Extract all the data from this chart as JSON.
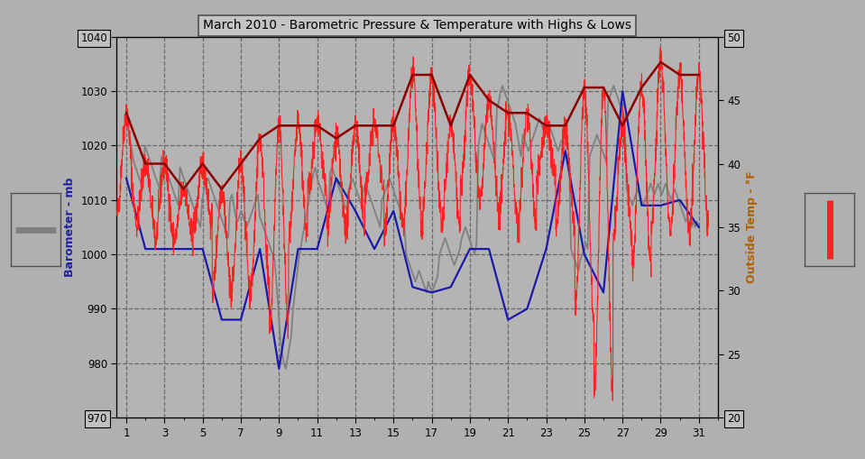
{
  "title": "March 2010 - Barometric Pressure & Temperature with Highs & Lows",
  "bg_color": "#b0b0b0",
  "plot_bg_color": "#b4b4b4",
  "left_ylabel": "Barometer - mb",
  "right_ylabel": "Outside Temp - °F",
  "ylim_left": [
    970.0,
    1040.0
  ],
  "ylim_right": [
    20.0,
    50.0
  ],
  "yticks_left": [
    970.0,
    980.0,
    990.0,
    1000.0,
    1010.0,
    1020.0,
    1030.0,
    1040.0
  ],
  "yticks_right": [
    20.0,
    25.0,
    30.0,
    35.0,
    40.0,
    45.0,
    50.0
  ],
  "xticks": [
    1,
    3,
    5,
    7,
    9,
    11,
    13,
    15,
    17,
    19,
    21,
    23,
    25,
    27,
    29,
    31
  ],
  "xlim": [
    0.5,
    32.0
  ],
  "pressure_color": "#808080",
  "pressure_low_color": "#1a1aaa",
  "temp_continuous_color": "#ff2020",
  "temp_high_color": "#8b0000",
  "seed": 42,
  "pressure_hires": [
    1025,
    1023,
    1021,
    1019,
    1017,
    1016,
    1015,
    1014,
    1013,
    1012,
    1020,
    1019,
    1018,
    1017,
    1016,
    1015,
    1014,
    1013,
    1012,
    1018,
    1017,
    1016,
    1015,
    1014,
    1013,
    1012,
    1011,
    1010,
    1009,
    1016,
    1015,
    1014,
    1013,
    1012,
    1011,
    1010,
    1009,
    1008,
    1007,
    1006,
    1005,
    1010,
    1012,
    1013,
    1014,
    1013,
    1012,
    1011,
    1010,
    1009,
    1008,
    1007,
    1006,
    1005,
    1004,
    1003,
    1010,
    1011,
    1009,
    1007,
    1006,
    1007,
    1008,
    1007,
    1006,
    1005,
    1006,
    1007,
    1008,
    1009,
    1010,
    1011,
    1007,
    1006,
    1005,
    1004,
    1003,
    1002,
    1001,
    1000,
    999,
    995,
    990,
    985,
    982,
    980,
    979,
    981,
    983,
    985,
    990,
    993,
    996,
    999,
    1001,
    1003,
    1005,
    1007,
    1009,
    1011,
    1013,
    1015,
    1016,
    1014,
    1013,
    1012,
    1011,
    1010,
    1009,
    1008,
    1015,
    1016,
    1015,
    1014,
    1013,
    1012,
    1011,
    1010,
    1009,
    1008,
    1012,
    1013,
    1014,
    1013,
    1012,
    1011,
    1010,
    1009,
    1012,
    1013,
    1012,
    1011,
    1010,
    1009,
    1008,
    1007,
    1006,
    1005,
    1010,
    1011,
    1012,
    1013,
    1014,
    1013,
    1012,
    1011,
    1010,
    1009,
    1008,
    1007,
    1006,
    1000,
    999,
    998,
    997,
    996,
    995,
    996,
    997,
    996,
    995,
    994,
    993,
    995,
    994,
    993,
    994,
    995,
    996,
    1000,
    1001,
    1002,
    1003,
    1002,
    1001,
    1000,
    999,
    998,
    999,
    1000,
    1001,
    1003,
    1004,
    1005,
    1004,
    1003,
    1002,
    1001,
    1000,
    1002,
    1020,
    1022,
    1024,
    1023,
    1022,
    1021,
    1020,
    1019,
    1018,
    1017,
    1027,
    1028,
    1030,
    1031,
    1030,
    1029,
    1028,
    1027,
    1026,
    1025,
    1024,
    1022,
    1020,
    1018,
    1022,
    1021,
    1020,
    1019,
    1020,
    1021,
    1022,
    1023,
    1024,
    1025,
    1024,
    1023,
    1024,
    1025,
    1024,
    1023,
    1022,
    1021,
    1020,
    1019,
    1020,
    1021,
    1020,
    1019,
    1018,
    1017,
    1001,
    1000,
    999,
    998,
    997,
    999,
    1000,
    1001,
    1002,
    1001,
    1018,
    1019,
    1020,
    1021,
    1022,
    1021,
    1020,
    1019,
    1018,
    1017,
    1028,
    1029,
    1030,
    1031,
    1030,
    1029,
    1028,
    1027,
    1026,
    1025,
    1012,
    1011,
    1010,
    1009,
    1010,
    1011,
    1012,
    1011,
    1010,
    1009,
    1010,
    1011,
    1012,
    1013,
    1012,
    1011,
    1012,
    1013,
    1012,
    1011,
    1012,
    1013,
    1012,
    1011,
    1010,
    1011,
    1012,
    1011,
    1010,
    1009,
    1008,
    1007,
    1006,
    1007,
    1006,
    1005,
    1006,
    1005,
    1006,
    1005
  ],
  "pressure_daily_low": [
    1014,
    1001,
    1001,
    1001,
    1001,
    988,
    988,
    1001,
    979,
    1001,
    1001,
    1014,
    1008,
    1001,
    1008,
    994,
    993,
    994,
    1001,
    1001,
    988,
    990,
    1001,
    1019,
    1000,
    993,
    1030,
    1009,
    1009,
    1010,
    1005
  ],
  "temp_high_daily": [
    44,
    40,
    40,
    38,
    40,
    38,
    40,
    42,
    43,
    43,
    43,
    42,
    43,
    43,
    43,
    47,
    47,
    43,
    47,
    45,
    44,
    44,
    43,
    43,
    46,
    46,
    43,
    46,
    48,
    47,
    47
  ],
  "temp_low_daily": [
    36,
    35,
    34,
    34,
    35,
    30,
    30,
    30,
    27,
    34,
    38,
    35,
    35,
    38,
    35,
    35,
    36,
    35,
    38,
    37,
    36,
    35,
    39,
    35,
    28,
    22,
    34,
    32,
    35,
    35,
    35
  ]
}
